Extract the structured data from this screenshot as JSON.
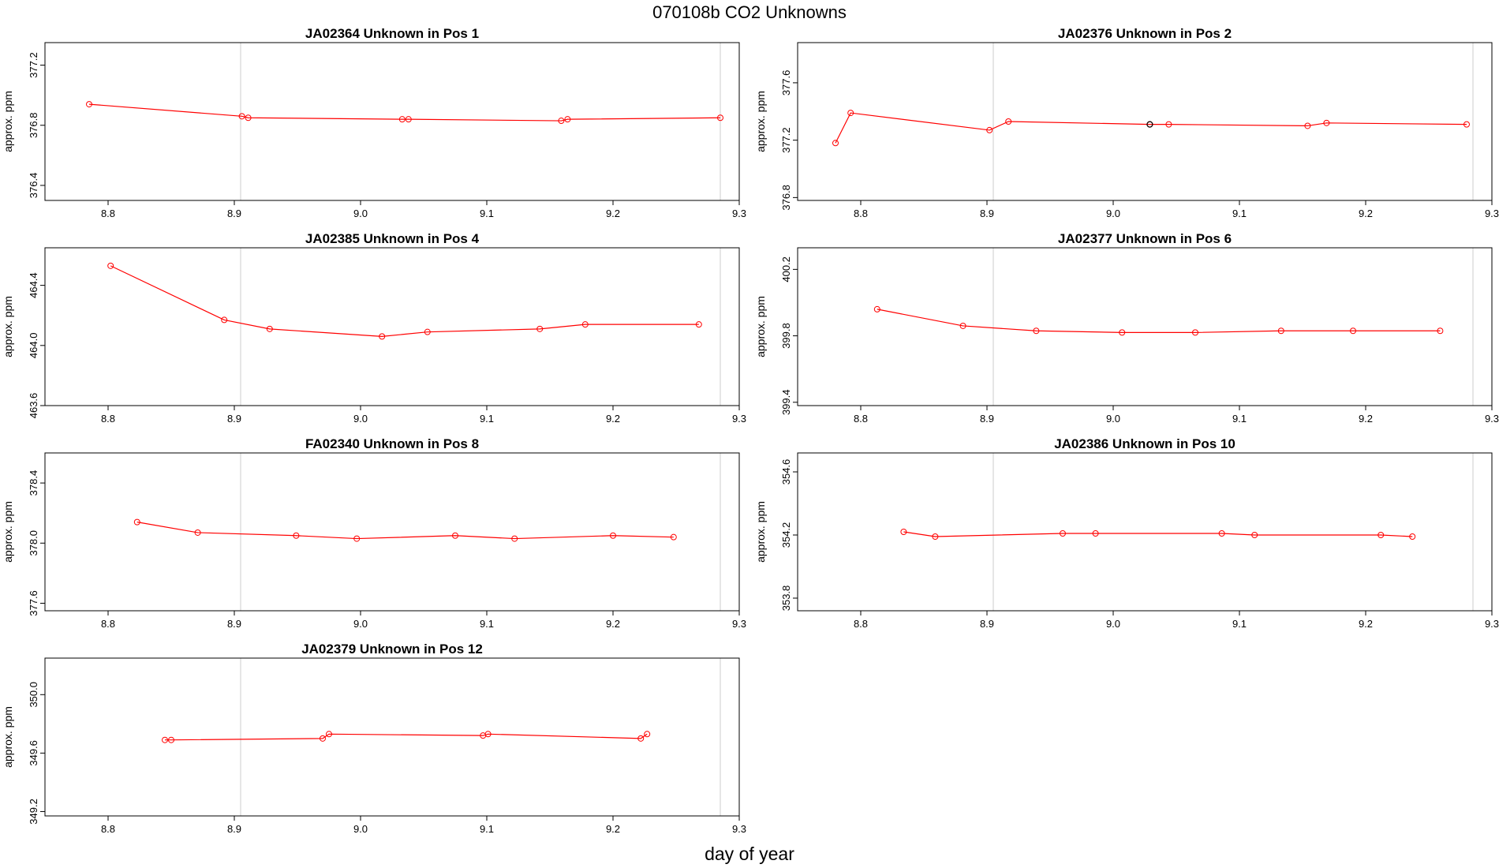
{
  "page": {
    "title": "070108b  CO2 Unknowns",
    "xlabel": "day of year"
  },
  "chart_data": [
    {
      "type": "line",
      "title": "JA02364    Unknown in Pos 1",
      "ylabel": "approx. ppm",
      "xlim": [
        8.75,
        9.3
      ],
      "ylim": [
        376.3,
        377.35
      ],
      "xticks": [
        "8.8",
        "8.9",
        "9.0",
        "9.1",
        "9.2",
        "9.3"
      ],
      "yticks": [
        "376.4",
        "376.8",
        "377.2"
      ],
      "vlines": [
        8.905,
        9.285
      ],
      "series": [
        {
          "color": "#ff0000",
          "x": [
            8.785,
            8.906,
            8.911,
            9.033,
            9.038,
            9.159,
            9.164,
            9.285
          ],
          "y": [
            376.94,
            376.86,
            376.85,
            376.84,
            376.84,
            376.83,
            376.84,
            376.85
          ]
        }
      ],
      "highlight": []
    },
    {
      "type": "line",
      "title": "JA02376    Unknown in Pos 2",
      "ylabel": "approx. ppm",
      "xlim": [
        8.75,
        9.3
      ],
      "ylim": [
        376.78,
        377.88
      ],
      "xticks": [
        "8.8",
        "8.9",
        "9.0",
        "9.1",
        "9.2",
        "9.3"
      ],
      "yticks": [
        "376.8",
        "377.2",
        "377.6"
      ],
      "vlines": [
        8.905,
        9.285
      ],
      "series": [
        {
          "color": "#ff0000",
          "x": [
            8.78,
            8.792,
            8.902,
            8.917,
            9.029,
            9.044,
            9.154,
            9.169,
            9.28
          ],
          "y": [
            377.18,
            377.39,
            377.27,
            377.33,
            377.31,
            377.31,
            377.3,
            377.32,
            377.31
          ]
        }
      ],
      "highlight": [
        {
          "x": 9.029,
          "y": 377.31,
          "color": "#000000"
        }
      ]
    },
    {
      "type": "line",
      "title": "JA02385    Unknown in Pos 4",
      "ylabel": "approx. ppm",
      "xlim": [
        8.75,
        9.3
      ],
      "ylim": [
        463.6,
        464.65
      ],
      "xticks": [
        "8.8",
        "8.9",
        "9.0",
        "9.1",
        "9.2",
        "9.3"
      ],
      "yticks": [
        "463.6",
        "464.0",
        "464.4"
      ],
      "vlines": [
        8.905,
        9.285
      ],
      "series": [
        {
          "color": "#ff0000",
          "x": [
            8.802,
            8.892,
            8.928,
            9.017,
            9.053,
            9.142,
            9.178,
            9.268
          ],
          "y": [
            464.53,
            464.17,
            464.11,
            464.06,
            464.09,
            464.11,
            464.14,
            464.14
          ]
        }
      ],
      "highlight": []
    },
    {
      "type": "line",
      "title": "JA02377    Unknown in Pos 6",
      "ylabel": "approx. ppm",
      "xlim": [
        8.75,
        9.3
      ],
      "ylim": [
        399.38,
        400.33
      ],
      "xticks": [
        "8.8",
        "8.9",
        "9.0",
        "9.1",
        "9.2",
        "9.3"
      ],
      "yticks": [
        "399.4",
        "399.8",
        "400.2"
      ],
      "vlines": [
        8.905,
        9.285
      ],
      "series": [
        {
          "color": "#ff0000",
          "x": [
            8.813,
            8.881,
            8.939,
            9.007,
            9.065,
            9.133,
            9.19,
            9.259
          ],
          "y": [
            399.96,
            399.86,
            399.83,
            399.82,
            399.82,
            399.83,
            399.83,
            399.83
          ]
        }
      ],
      "highlight": []
    },
    {
      "type": "line",
      "title": "FA02340    Unknown in Pos 8",
      "ylabel": "approx. ppm",
      "xlim": [
        8.75,
        9.3
      ],
      "ylim": [
        377.55,
        378.6
      ],
      "xticks": [
        "8.8",
        "8.9",
        "9.0",
        "9.1",
        "9.2",
        "9.3"
      ],
      "yticks": [
        "377.6",
        "378.0",
        "378.4"
      ],
      "vlines": [
        8.905,
        9.285
      ],
      "series": [
        {
          "color": "#ff0000",
          "x": [
            8.823,
            8.871,
            8.949,
            8.997,
            9.075,
            9.122,
            9.2,
            9.248
          ],
          "y": [
            378.14,
            378.07,
            378.05,
            378.03,
            378.05,
            378.03,
            378.05,
            378.04
          ]
        }
      ],
      "highlight": []
    },
    {
      "type": "line",
      "title": "JA02386    Unknown in Pos 10",
      "ylabel": "approx. ppm",
      "xlim": [
        8.75,
        9.3
      ],
      "ylim": [
        353.72,
        354.72
      ],
      "xticks": [
        "8.8",
        "8.9",
        "9.0",
        "9.1",
        "9.2",
        "9.3"
      ],
      "yticks": [
        "353.8",
        "354.2",
        "354.6"
      ],
      "vlines": [
        8.905,
        9.285
      ],
      "series": [
        {
          "color": "#ff0000",
          "x": [
            8.834,
            8.859,
            8.96,
            8.986,
            9.086,
            9.112,
            9.212,
            9.237
          ],
          "y": [
            354.22,
            354.19,
            354.21,
            354.21,
            354.21,
            354.2,
            354.2,
            354.19
          ]
        }
      ],
      "highlight": []
    },
    {
      "type": "line",
      "title": "JA02379    Unknown in Pos 12",
      "ylabel": "approx. ppm",
      "xlim": [
        8.75,
        9.3
      ],
      "ylim": [
        349.17,
        350.25
      ],
      "xticks": [
        "8.8",
        "8.9",
        "9.0",
        "9.1",
        "9.2",
        "9.3"
      ],
      "yticks": [
        "349.2",
        "349.6",
        "350.0"
      ],
      "vlines": [
        8.905,
        9.285
      ],
      "series": [
        {
          "color": "#ff0000",
          "x": [
            8.845,
            8.85,
            8.97,
            8.975,
            9.097,
            9.101,
            9.222,
            9.227
          ],
          "y": [
            349.69,
            349.69,
            349.7,
            349.73,
            349.72,
            349.73,
            349.7,
            349.73
          ]
        }
      ],
      "highlight": []
    }
  ]
}
